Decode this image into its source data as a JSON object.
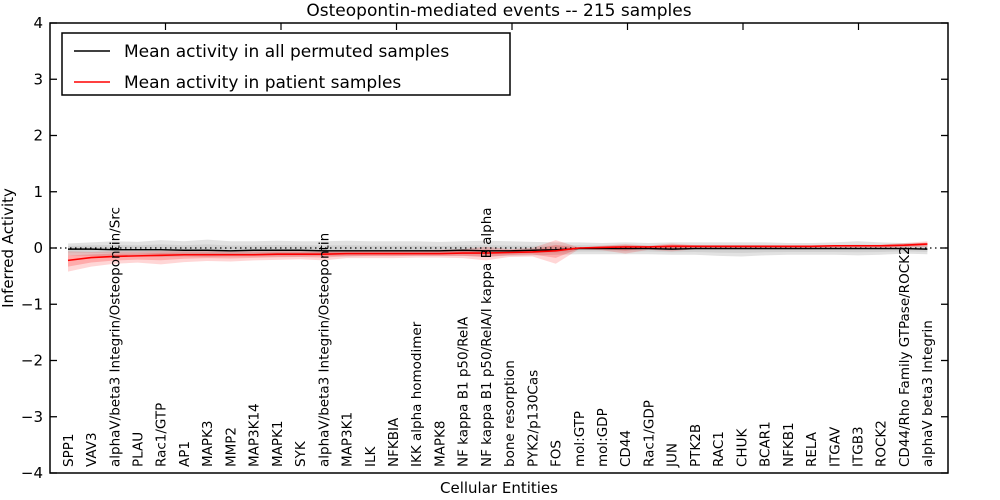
{
  "chart_data": {
    "type": "line",
    "title": "Osteopontin-mediated events -- 215 samples",
    "xlabel": "Cellular Entities",
    "ylabel": "Inferred Activity",
    "ylim": [
      -4,
      4
    ],
    "yticks": [
      -4,
      -3,
      -2,
      -1,
      0,
      1,
      2,
      3,
      4
    ],
    "grid": false,
    "legend_position": "upper left",
    "reference_line": {
      "y": 0,
      "style": "dotted",
      "color": "#000000"
    },
    "categories": [
      "SPP1",
      "VAV3",
      "alphaV/beta3 Integrin/Osteopontin/Src",
      "PLAU",
      "Rac1/GTP",
      "AP1",
      "MAPK3",
      "MMP2",
      "MAP3K14",
      "MAPK1",
      "SYK",
      "alphaV/beta3 Integrin/Osteopontin",
      "MAP3K1",
      "ILK",
      "NFKBIA",
      "IKK alpha homodimer",
      "MAPK8",
      "NF kappa B1 p50/RelA",
      "NF kappa B1 p50/RelA/I kappa B alpha",
      "bone resorption",
      "PYK2/p130Cas",
      "FOS",
      "mol:GTP",
      "mol:GDP",
      "CD44",
      "Rac1/GDP",
      "JUN",
      "PTK2B",
      "RAC1",
      "CHUK",
      "BCAR1",
      "NFKB1",
      "RELA",
      "ITGAV",
      "ITGB3",
      "ROCK2",
      "CD44/Rho Family GTPase/ROCK2",
      "alphaV beta3 Integrin"
    ],
    "series": [
      {
        "name": "Mean activity in all permuted samples",
        "color": "#000000",
        "band_color": "#909090",
        "values": [
          -0.02,
          -0.02,
          -0.03,
          -0.03,
          -0.03,
          -0.04,
          -0.04,
          -0.05,
          -0.04,
          -0.04,
          -0.04,
          -0.05,
          -0.05,
          -0.05,
          -0.05,
          -0.05,
          -0.05,
          -0.04,
          -0.05,
          -0.05,
          -0.04,
          -0.03,
          -0.01,
          -0.01,
          -0.01,
          -0.01,
          -0.02,
          -0.01,
          -0.01,
          -0.01,
          -0.01,
          -0.01,
          -0.01,
          -0.01,
          -0.01,
          -0.01,
          -0.01,
          -0.02
        ],
        "band_upper": [
          0.08,
          0.1,
          0.12,
          0.11,
          0.14,
          0.12,
          0.15,
          0.12,
          0.12,
          0.13,
          0.12,
          0.12,
          0.13,
          0.12,
          0.12,
          0.12,
          0.11,
          0.12,
          0.13,
          0.12,
          0.11,
          0.1,
          0.1,
          0.09,
          0.1,
          0.09,
          0.1,
          0.1,
          0.1,
          0.1,
          0.1,
          0.09,
          0.09,
          0.1,
          0.12,
          0.1,
          0.09,
          0.09
        ],
        "band_lower": [
          -0.13,
          -0.14,
          -0.15,
          -0.14,
          -0.16,
          -0.15,
          -0.16,
          -0.15,
          -0.15,
          -0.15,
          -0.15,
          -0.14,
          -0.15,
          -0.14,
          -0.14,
          -0.14,
          -0.14,
          -0.14,
          -0.15,
          -0.14,
          -0.13,
          -0.12,
          -0.11,
          -0.11,
          -0.11,
          -0.11,
          -0.12,
          -0.12,
          -0.14,
          -0.15,
          -0.13,
          -0.12,
          -0.12,
          -0.12,
          -0.13,
          -0.12,
          -0.1,
          -0.11
        ]
      },
      {
        "name": "Mean activity in patient samples",
        "color": "#ff0000",
        "band_color": "#ff0000",
        "values": [
          -0.22,
          -0.17,
          -0.15,
          -0.14,
          -0.13,
          -0.12,
          -0.12,
          -0.12,
          -0.12,
          -0.11,
          -0.11,
          -0.11,
          -0.1,
          -0.1,
          -0.1,
          -0.1,
          -0.1,
          -0.09,
          -0.09,
          -0.08,
          -0.07,
          -0.05,
          0.0,
          0.01,
          0.02,
          0.02,
          0.03,
          0.03,
          0.03,
          0.03,
          0.03,
          0.03,
          0.03,
          0.04,
          0.04,
          0.04,
          0.05,
          0.07
        ],
        "band_upper": [
          -0.06,
          -0.07,
          -0.06,
          -0.06,
          -0.05,
          -0.05,
          -0.05,
          -0.05,
          -0.05,
          -0.05,
          -0.05,
          -0.04,
          -0.04,
          -0.04,
          -0.04,
          -0.04,
          -0.03,
          -0.02,
          0.02,
          -0.02,
          0.0,
          0.14,
          0.01,
          0.04,
          0.07,
          0.04,
          0.08,
          0.05,
          0.04,
          0.04,
          0.04,
          0.04,
          0.04,
          0.05,
          0.05,
          0.06,
          0.09,
          0.12
        ],
        "band_lower": [
          -0.42,
          -0.33,
          -0.28,
          -0.26,
          -0.29,
          -0.25,
          -0.23,
          -0.24,
          -0.22,
          -0.21,
          -0.2,
          -0.22,
          -0.18,
          -0.18,
          -0.18,
          -0.17,
          -0.17,
          -0.18,
          -0.22,
          -0.16,
          -0.15,
          -0.28,
          -0.02,
          -0.04,
          -0.1,
          -0.03,
          -0.06,
          -0.02,
          -0.02,
          -0.02,
          -0.02,
          -0.02,
          -0.02,
          -0.01,
          -0.01,
          -0.01,
          0.01,
          0.02
        ]
      }
    ]
  }
}
